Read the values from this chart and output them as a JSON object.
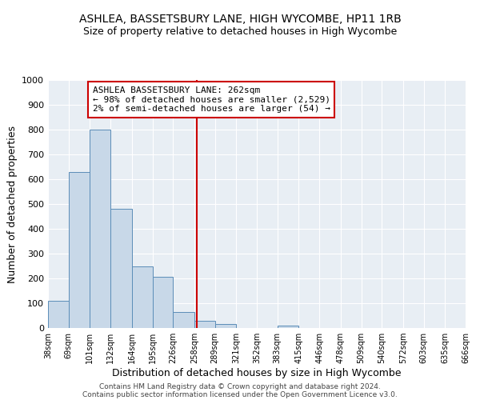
{
  "title": "ASHLEA, BASSETSBURY LANE, HIGH WYCOMBE, HP11 1RB",
  "subtitle": "Size of property relative to detached houses in High Wycombe",
  "xlabel": "Distribution of detached houses by size in High Wycombe",
  "ylabel": "Number of detached properties",
  "footnote1": "Contains HM Land Registry data © Crown copyright and database right 2024.",
  "footnote2": "Contains public sector information licensed under the Open Government Licence v3.0.",
  "bar_edges": [
    38,
    69,
    101,
    132,
    164,
    195,
    226,
    258,
    289,
    321,
    352,
    383,
    415,
    446,
    478,
    509,
    540,
    572,
    603,
    635,
    666
  ],
  "bar_heights": [
    110,
    630,
    800,
    480,
    250,
    205,
    63,
    28,
    15,
    0,
    0,
    10,
    0,
    0,
    0,
    0,
    0,
    0,
    0,
    0
  ],
  "bar_color": "#c8d8e8",
  "bar_edge_color": "#5b8db8",
  "vline_x": 262,
  "vline_color": "#cc0000",
  "annotation_line1": "ASHLEA BASSETSBURY LANE: 262sqm",
  "annotation_line2": "← 98% of detached houses are smaller (2,529)",
  "annotation_line3": "2% of semi-detached houses are larger (54) →",
  "annotation_box_color": "#cc0000",
  "annotation_box_bg": "#ffffff",
  "ylim": [
    0,
    1000
  ],
  "tick_labels": [
    "38sqm",
    "69sqm",
    "101sqm",
    "132sqm",
    "164sqm",
    "195sqm",
    "226sqm",
    "258sqm",
    "289sqm",
    "321sqm",
    "352sqm",
    "383sqm",
    "415sqm",
    "446sqm",
    "478sqm",
    "509sqm",
    "540sqm",
    "572sqm",
    "603sqm",
    "635sqm",
    "666sqm"
  ],
  "background_color": "#e8eef4",
  "grid_color": "#ffffff",
  "title_fontsize": 10,
  "subtitle_fontsize": 9,
  "axis_label_fontsize": 9,
  "tick_fontsize": 7,
  "annotation_fontsize": 8,
  "footnote_fontsize": 6.5
}
